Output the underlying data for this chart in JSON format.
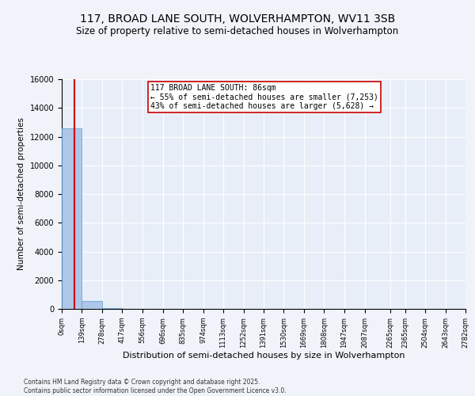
{
  "title": "117, BROAD LANE SOUTH, WOLVERHAMPTON, WV11 3SB",
  "subtitle": "Size of property relative to semi-detached houses in Wolverhampton",
  "xlabel": "Distribution of semi-detached houses by size in Wolverhampton",
  "ylabel": "Number of semi-detached properties",
  "property_size": 86,
  "property_label": "117 BROAD LANE SOUTH: 86sqm",
  "pct_smaller": 55,
  "count_smaller": 7253,
  "pct_larger": 43,
  "count_larger": 5628,
  "bin_edges": [
    0,
    139,
    278,
    417,
    556,
    696,
    835,
    974,
    1113,
    1252,
    1391,
    1530,
    1669,
    1808,
    1947,
    2087,
    2265,
    2365,
    2504,
    2643,
    2782
  ],
  "bin_counts": [
    12600,
    530,
    50,
    10,
    5,
    3,
    2,
    1,
    1,
    1,
    0,
    0,
    0,
    0,
    0,
    0,
    0,
    0,
    0,
    0
  ],
  "bar_color": "#aec6e8",
  "bar_edge_color": "#5a9fd4",
  "red_line_color": "#cc0000",
  "annotation_box_color": "#cc0000",
  "ylim": [
    0,
    16000
  ],
  "tick_labels": [
    "0sqm",
    "139sqm",
    "278sqm",
    "417sqm",
    "556sqm",
    "696sqm",
    "835sqm",
    "974sqm",
    "1113sqm",
    "1252sqm",
    "1391sqm",
    "1530sqm",
    "1669sqm",
    "1808sqm",
    "1947sqm",
    "2087sqm",
    "2265sqm",
    "2365sqm",
    "2504sqm",
    "2643sqm",
    "2782sqm"
  ],
  "footer1": "Contains HM Land Registry data © Crown copyright and database right 2025.",
  "footer2": "Contains public sector information licensed under the Open Government Licence v3.0.",
  "background_color": "#f0f4fa",
  "plot_bg_color": "#e8eef8",
  "title_fontsize": 10,
  "subtitle_fontsize": 8.5,
  "ylabel_fontsize": 7.5,
  "xlabel_fontsize": 8,
  "tick_fontsize": 6,
  "ann_fontsize": 7,
  "footer_fontsize": 5.5
}
